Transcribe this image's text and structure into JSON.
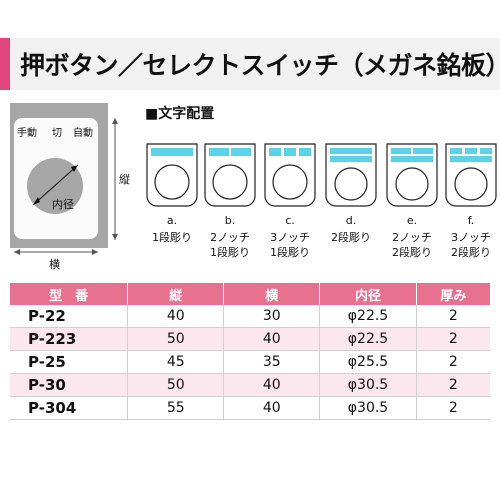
{
  "header": {
    "title": "押ボタン／セレクトスイッチ（メガネ銘板）"
  },
  "plate": {
    "labels": [
      "手動",
      "切",
      "自動"
    ],
    "inner_diameter_label": "内径",
    "height_label": "縦",
    "width_label": "横"
  },
  "layout": {
    "title": "■文字配置",
    "variants": [
      {
        "letter": "a.",
        "line1": "1段彫り",
        "line2": ""
      },
      {
        "letter": "b.",
        "line1": "2ノッチ",
        "line2": "1段彫り"
      },
      {
        "letter": "c.",
        "line1": "3ノッチ",
        "line2": "1段彫り"
      },
      {
        "letter": "d.",
        "line1": "2段彫り",
        "line2": ""
      },
      {
        "letter": "e.",
        "line1": "2ノッチ",
        "line2": "2段彫り"
      },
      {
        "letter": "f.",
        "line1": "3ノッチ",
        "line2": "2段彫り"
      }
    ],
    "accent_color": "#5ad3e8"
  },
  "table": {
    "headers": [
      "型　番",
      "縦",
      "横",
      "内径",
      "厚み"
    ],
    "rows": [
      [
        "P-22",
        "40",
        "30",
        "φ22.5",
        "2"
      ],
      [
        "P-223",
        "50",
        "40",
        "φ22.5",
        "2"
      ],
      [
        "P-25",
        "45",
        "35",
        "φ25.5",
        "2"
      ],
      [
        "P-30",
        "50",
        "40",
        "φ30.5",
        "2"
      ],
      [
        "P-304",
        "55",
        "40",
        "φ30.5",
        "2"
      ]
    ],
    "header_color": "#e8718f",
    "alt_row_color": "#fde7ef"
  }
}
